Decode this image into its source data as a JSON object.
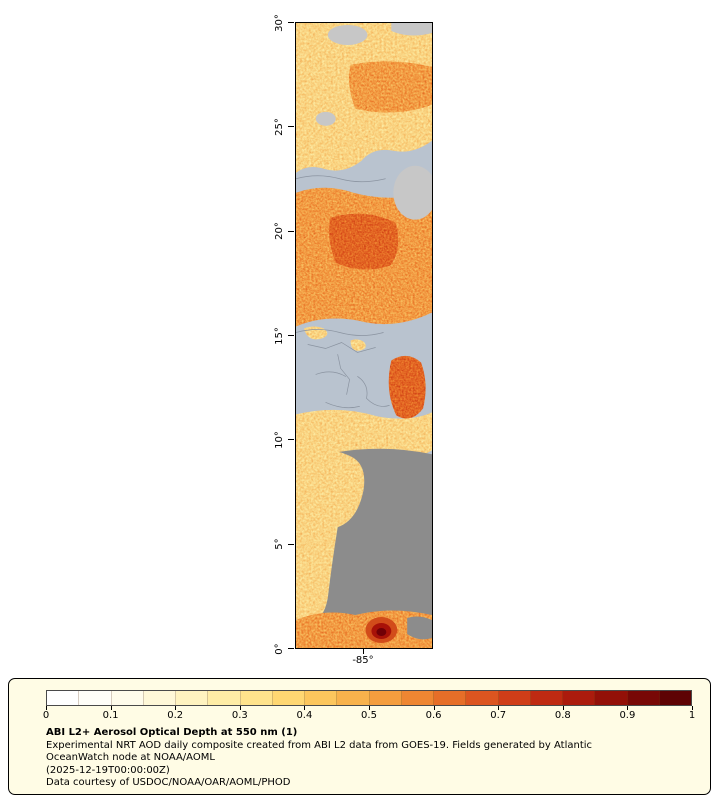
{
  "colors": {
    "page_bg": "#ffffff",
    "water": "#b9c3cf",
    "cloud_light": "#c7c7c7",
    "cloud_dark": "#8c8c8c",
    "legend_bg": "#fffce5",
    "frame": "#000000"
  },
  "map": {
    "y_axis": {
      "tick_labels": [
        "30°",
        "25°",
        "20°",
        "15°",
        "10°",
        "5°",
        "0°"
      ]
    },
    "x_axis": {
      "tick_labels": [
        "-85°"
      ]
    }
  },
  "legend": {
    "colorbar": {
      "min": 0,
      "max": 1,
      "tick_labels": [
        "0",
        "0.1",
        "0.2",
        "0.3",
        "0.4",
        "0.5",
        "0.6",
        "0.7",
        "0.8",
        "0.9",
        "1"
      ],
      "palette": [
        "#ffffff",
        "#fffef8",
        "#fffceb",
        "#fff8d8",
        "#fff3c0",
        "#ffeda6",
        "#ffe38c",
        "#ffd772",
        "#fcc65d",
        "#f8b24c",
        "#f49d3e",
        "#ee8632",
        "#e66e28",
        "#dc5520",
        "#cf3d18",
        "#bf2a12",
        "#ab1b0d",
        "#931008",
        "#780806",
        "#5e0304"
      ]
    },
    "title": "ABI L2+ Aerosol Optical Depth at 550 nm (1)",
    "description_lines": [
      "Experimental NRT AOD daily composite created from ABI L2 data from GOES-19. Fields generated by Atlantic",
      "OceanWatch node at NOAA/AOML"
    ],
    "timestamp": "(2025-12-19T00:00:00Z)",
    "credit": "Data courtesy of USDOC/NOAA/OAR/AOML/PHOD"
  },
  "chart_data": {
    "type": "heatmap",
    "title": "ABI L2+ Aerosol Optical Depth at 550 nm (1)",
    "colorbar_range": [
      0,
      1
    ],
    "colorbar_ticks": [
      0,
      0.1,
      0.2,
      0.3,
      0.4,
      0.5,
      0.6,
      0.7,
      0.8,
      0.9,
      1
    ],
    "lat_ticks_deg": [
      30,
      25,
      20,
      15,
      10,
      5,
      0
    ],
    "lon_ticks_deg": [
      -85
    ],
    "legend_position": "bottom"
  }
}
